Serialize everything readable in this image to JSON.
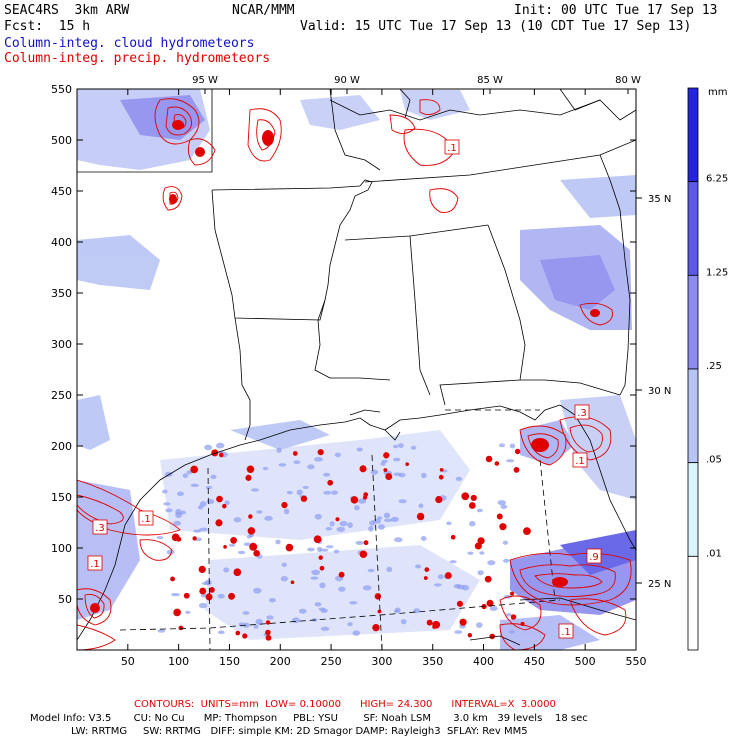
{
  "header": {
    "run_name": "SEAC4RS  3km ARW",
    "org": "NCAR/MMM",
    "init": "Init: 00 UTC Tue 17 Sep 13",
    "fcst": "Fcst:  15 h",
    "valid": "Valid: 15 UTC Tue 17 Sep 13 (10 CDT Tue 17 Sep 13)",
    "field1": "Column-integ. cloud hydrometeors",
    "field2": "Column-integ. precip. hydrometeors"
  },
  "axes": {
    "x_ticks": [
      "50",
      "100",
      "150",
      "200",
      "250",
      "300",
      "350",
      "400",
      "450",
      "500",
      "550"
    ],
    "y_ticks": [
      "50",
      "100",
      "150",
      "200",
      "250",
      "300",
      "350",
      "400",
      "450",
      "500",
      "550"
    ],
    "lon_labels": [
      "95 W",
      "90 W",
      "85 W",
      "80 W"
    ],
    "lat_labels": [
      "35 N",
      "30 N",
      "25 N"
    ]
  },
  "colorbar": {
    "unit": "mm",
    "labels": [
      "6.25",
      "1.25",
      ".25",
      ".05",
      ".01"
    ],
    "colors": [
      "#2424d8",
      "#5a5ae6",
      "#8c8cee",
      "#b8c4f4",
      "#dcf4fc",
      "#ffffff"
    ]
  },
  "contour_labels": [
    ".1",
    ".3",
    ".1",
    ".1",
    ".3",
    ".1",
    ".9",
    ".1"
  ],
  "footer": {
    "contours": "CONTOURS:  UNITS=mm  LOW= 0.10000      HIGH= 24.300      INTERVAL=X  3.0000",
    "model_line1": "Model Info: V3.5       CU: No Cu      MP: Thompson     PBL: YSU        SF: Noah LSM       3.0 km   39 levels    18 sec",
    "model_line2": "LW: RRTMG     SW: RRTMG   DIFF: simple KM: 2D Smagor DAMP: Rayleigh3  SFLAY: Rev MM5"
  },
  "colors": {
    "cloud": "#b0b8f4",
    "cloud_dark": "#8c8cee",
    "precip": "#e00000"
  }
}
